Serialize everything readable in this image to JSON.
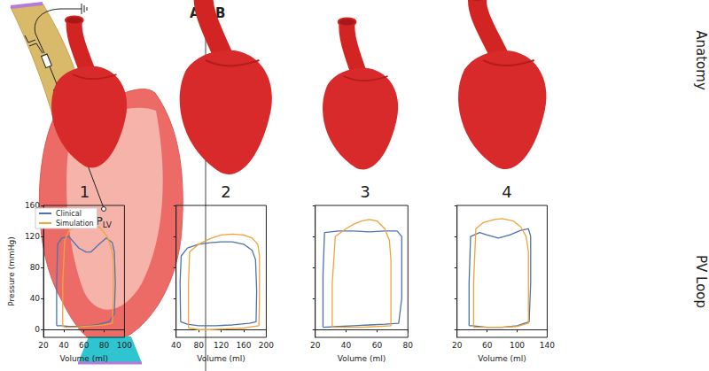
{
  "panels": {
    "a": {
      "label": "A",
      "pressure_node": {
        "text": "P",
        "subscript": "LV"
      }
    },
    "b": {
      "label": "B",
      "row_labels": [
        "Anatomy",
        "PV Loop"
      ]
    }
  },
  "chart_data": [
    {
      "type": "line",
      "title": "1",
      "x_label": "Volume (ml)",
      "y_label": "Pressure (mmHg)",
      "xlim": [
        20,
        100
      ],
      "xticks": [
        20,
        40,
        60,
        80,
        100
      ],
      "ylim": [
        -10,
        160
      ],
      "yticks": [
        0,
        40,
        80,
        120,
        160
      ],
      "grid": false,
      "legend": "upper left",
      "series": [
        {
          "name": "Clinical",
          "color": "#4c72b0",
          "x": [
            33,
            33,
            34,
            38,
            45,
            55,
            62,
            67,
            75,
            82,
            88,
            90,
            91,
            90,
            85,
            75,
            65,
            55,
            45,
            38,
            33
          ],
          "values": [
            5,
            60,
            110,
            118,
            120,
            105,
            100,
            100,
            110,
            118,
            112,
            100,
            60,
            20,
            10,
            7,
            5,
            4,
            4,
            5,
            5
          ]
        },
        {
          "name": "Simulation",
          "color": "#f0a33a",
          "x": [
            39,
            39,
            41,
            45,
            52,
            60,
            68,
            76,
            83,
            87,
            89,
            89,
            88,
            80,
            70,
            60,
            50,
            42,
            39
          ],
          "values": [
            4,
            60,
            115,
            127,
            134,
            137,
            136,
            131,
            120,
            105,
            90,
            40,
            8,
            6,
            5,
            4,
            3,
            3,
            4
          ]
        }
      ]
    },
    {
      "type": "line",
      "title": "2",
      "x_label": "Volume (ml)",
      "xlim": [
        40,
        200
      ],
      "xticks": [
        40,
        80,
        120,
        160,
        200
      ],
      "ylim": [
        -10,
        160
      ],
      "yticks": [
        0,
        40,
        80,
        120,
        160
      ],
      "grid": false,
      "tick_labels": "x",
      "series": [
        {
          "name": "Clinical",
          "color": "#4c72b0",
          "x": [
            48,
            47,
            49,
            60,
            80,
            100,
            120,
            140,
            160,
            175,
            181,
            183,
            182,
            170,
            140,
            110,
            80,
            60,
            48
          ],
          "values": [
            10,
            60,
            95,
            105,
            110,
            112,
            113,
            113,
            110,
            102,
            90,
            50,
            10,
            8,
            6,
            5,
            5,
            7,
            10
          ]
        },
        {
          "name": "Simulation",
          "color": "#f0a33a",
          "x": [
            62,
            62,
            64,
            80,
            100,
            120,
            140,
            160,
            175,
            185,
            188,
            188,
            187,
            160,
            130,
            100,
            80,
            62
          ],
          "values": [
            2,
            60,
            100,
            110,
            117,
            122,
            123,
            122,
            118,
            110,
            95,
            40,
            5,
            2,
            1,
            0,
            0,
            2
          ]
        }
      ]
    },
    {
      "type": "line",
      "title": "3",
      "x_label": "Volume (ml)",
      "xlim": [
        20,
        80
      ],
      "xticks": [
        20,
        40,
        60,
        80
      ],
      "ylim": [
        -10,
        160
      ],
      "yticks": [
        0,
        40,
        80,
        120,
        160
      ],
      "grid": false,
      "tick_labels": "x",
      "series": [
        {
          "name": "Clinical",
          "color": "#4c72b0",
          "x": [
            25,
            25,
            26,
            35,
            45,
            55,
            65,
            73,
            76,
            76,
            74,
            65,
            55,
            45,
            35,
            25
          ],
          "values": [
            3,
            70,
            125,
            127,
            127,
            126,
            127,
            127,
            120,
            40,
            8,
            7,
            6,
            5,
            4,
            3
          ]
        },
        {
          "name": "Simulation",
          "color": "#f0a33a",
          "x": [
            31,
            31,
            33,
            40,
            45,
            50,
            55,
            60,
            65,
            68,
            69,
            69,
            60,
            50,
            40,
            31
          ],
          "values": [
            3,
            60,
            120,
            130,
            136,
            140,
            142,
            140,
            130,
            115,
            90,
            5,
            4,
            3,
            3,
            3
          ]
        }
      ]
    },
    {
      "type": "line",
      "title": "4",
      "x_label": "Volume (ml)",
      "xlim": [
        20,
        140
      ],
      "xticks": [
        20,
        60,
        100,
        140
      ],
      "ylim": [
        -10,
        160
      ],
      "yticks": [
        0,
        40,
        80,
        120,
        160
      ],
      "grid": false,
      "tick_labels": "x",
      "series": [
        {
          "name": "Clinical",
          "color": "#4c72b0",
          "x": [
            36,
            36,
            38,
            50,
            60,
            75,
            90,
            105,
            115,
            118,
            118,
            116,
            100,
            80,
            60,
            40,
            36
          ],
          "values": [
            5,
            60,
            120,
            125,
            122,
            118,
            122,
            128,
            130,
            120,
            60,
            10,
            5,
            3,
            3,
            5,
            5
          ]
        },
        {
          "name": "Simulation",
          "color": "#f0a33a",
          "x": [
            42,
            42,
            45,
            55,
            70,
            80,
            95,
            105,
            112,
            115,
            115,
            100,
            80,
            60,
            42
          ],
          "values": [
            3,
            60,
            130,
            138,
            142,
            143,
            140,
            132,
            120,
            100,
            8,
            4,
            3,
            3,
            3
          ]
        }
      ]
    }
  ]
}
